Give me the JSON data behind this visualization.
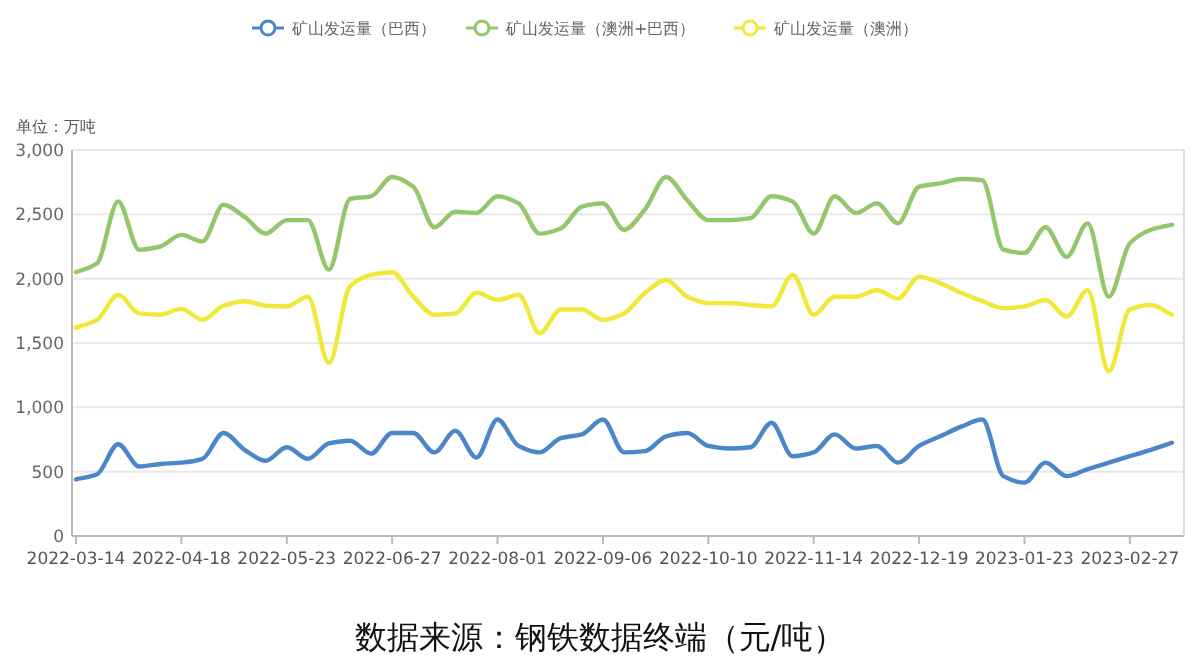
{
  "chart_data": {
    "type": "line",
    "ylabel": "单位：万吨",
    "categories": [
      "2022-03-14",
      null,
      null,
      null,
      null,
      "2022-04-18",
      null,
      null,
      null,
      null,
      "2022-05-23",
      null,
      null,
      null,
      null,
      "2022-06-27",
      null,
      null,
      null,
      null,
      "2022-08-01",
      null,
      null,
      null,
      null,
      "2022-09-06",
      null,
      null,
      null,
      null,
      "2022-10-10",
      null,
      null,
      null,
      null,
      "2022-11-14",
      null,
      null,
      null,
      null,
      "2022-12-19",
      null,
      null,
      null,
      null,
      "2023-01-23",
      null,
      null,
      null,
      null,
      "2023-02-27",
      null,
      null
    ],
    "series": [
      {
        "name": "矿山发运量（巴西）",
        "color": "#4a86c8",
        "values": [
          440,
          480,
          713,
          540,
          560,
          570,
          600,
          800,
          670,
          585,
          690,
          600,
          720,
          740,
          640,
          800,
          800,
          650,
          817,
          610,
          905,
          700,
          650,
          760,
          790,
          905,
          650,
          660,
          775,
          800,
          700,
          680,
          690,
          880,
          620,
          650,
          790,
          680,
          700,
          570,
          700,
          775,
          850,
          905,
          465,
          415,
          570,
          465,
          520,
          570,
          620,
          670,
          725
        ]
      },
      {
        "name": "矿山发运量（澳洲+巴西）",
        "color": "#92c86b",
        "values": [
          2050,
          2120,
          2600,
          2225,
          2250,
          2340,
          2290,
          2575,
          2480,
          2350,
          2455,
          2455,
          2070,
          2620,
          2640,
          2790,
          2715,
          2400,
          2520,
          2510,
          2640,
          2585,
          2350,
          2390,
          2560,
          2585,
          2380,
          2540,
          2790,
          2610,
          2455,
          2455,
          2470,
          2640,
          2600,
          2350,
          2640,
          2510,
          2585,
          2430,
          2715,
          2740,
          2775,
          2765,
          2225,
          2200,
          2400,
          2170,
          2430,
          1860,
          2275,
          2380,
          2420
        ]
      },
      {
        "name": "矿山发运量（澳洲）",
        "color": "#f0e93a",
        "values": [
          1620,
          1680,
          1875,
          1730,
          1720,
          1765,
          1680,
          1790,
          1825,
          1790,
          1785,
          1860,
          1345,
          1940,
          2030,
          2050,
          1860,
          1720,
          1730,
          1890,
          1835,
          1875,
          1575,
          1760,
          1760,
          1680,
          1730,
          1890,
          1990,
          1860,
          1810,
          1810,
          1795,
          1785,
          2030,
          1720,
          1860,
          1860,
          1910,
          1845,
          2015,
          1965,
          1890,
          1825,
          1770,
          1785,
          1835,
          1705,
          1910,
          1280,
          1760,
          1795,
          1720
        ]
      }
    ],
    "ylim": [
      0,
      3000
    ],
    "yticks": [
      0,
      {
        "value": 500,
        "label": "500"
      },
      {
        "value": 1000,
        "label": "1,000"
      },
      {
        "value": 1500,
        "label": "1,500"
      },
      {
        "value": 2000,
        "label": "2,000"
      },
      {
        "value": 2500,
        "label": "2,500"
      },
      {
        "value": 3000,
        "label": "3,000"
      }
    ],
    "grid": "y",
    "legend": "top",
    "marker": "none",
    "line_style": "solid",
    "annotations": [
      "数据来源：钢铁数据终端（元/吨）"
    ]
  }
}
